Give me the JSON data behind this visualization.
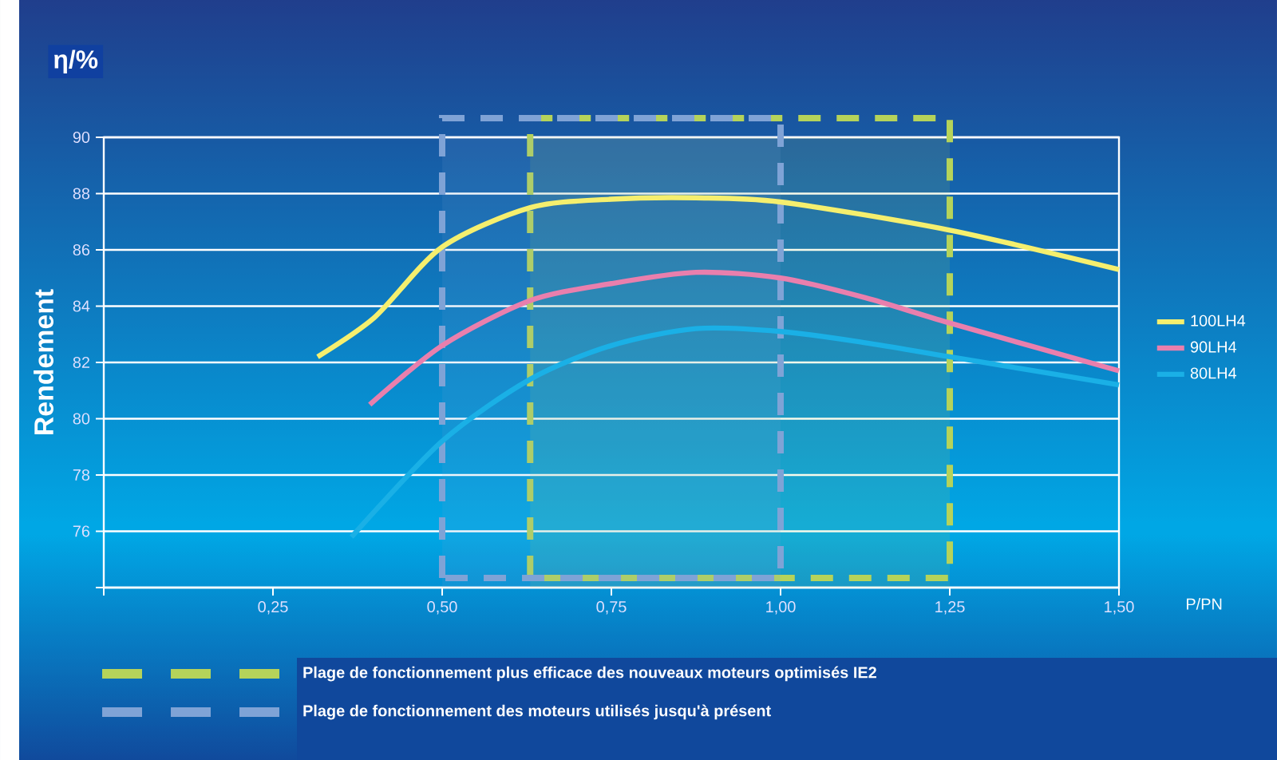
{
  "chart_data": {
    "type": "line",
    "xlabel": "P/PN",
    "ylabel": "Rendement",
    "annotations": [
      "η/%"
    ],
    "xlim": [
      0,
      1.5
    ],
    "ylim": [
      74,
      90
    ],
    "xticks": [
      {
        "value": 0,
        "label": null
      },
      {
        "value": 0.25,
        "label": "0,25"
      },
      {
        "value": 0.5,
        "label": "0,50"
      },
      {
        "value": 0.75,
        "label": "0,75"
      },
      {
        "value": 1.0,
        "label": "1,00"
      },
      {
        "value": 1.25,
        "label": "1,25"
      },
      {
        "value": 1.5,
        "label": "1,50"
      }
    ],
    "yticks": [
      {
        "value": 74,
        "label": null
      },
      76,
      78,
      80,
      82,
      84,
      86,
      88,
      90
    ],
    "grid": "y",
    "legend": "right",
    "marker": "none",
    "line_style": "solid",
    "series": [
      {
        "name": "100LH4",
        "color": "#f5ef6e",
        "x": [
          0.316,
          0.4,
          0.5,
          0.63,
          0.75,
          0.875,
          1.0,
          1.25,
          1.5
        ],
        "values": [
          82.2,
          83.6,
          86.1,
          87.5,
          87.8,
          87.85,
          87.7,
          86.7,
          85.3
        ]
      },
      {
        "name": "90LH4",
        "color": "#e97fad",
        "x": [
          0.393,
          0.5,
          0.63,
          0.75,
          0.875,
          1.0,
          1.125,
          1.25,
          1.5
        ],
        "values": [
          80.5,
          82.6,
          84.2,
          84.8,
          85.2,
          85.0,
          84.3,
          83.4,
          81.7
        ]
      },
      {
        "name": "80LH4",
        "color": "#1ab0e6",
        "x": [
          0.366,
          0.5,
          0.63,
          0.75,
          0.875,
          1.0,
          1.125,
          1.25,
          1.5
        ],
        "values": [
          75.8,
          79.2,
          81.4,
          82.6,
          83.2,
          83.1,
          82.7,
          82.2,
          81.2
        ]
      }
    ],
    "bands": [
      {
        "axis": "x",
        "from": 0.63,
        "to": 1.25,
        "label": "Plage de fonctionnement plus efficace des nouveaux moteurs optimisés IE2",
        "color": "#b5d35a"
      },
      {
        "axis": "x",
        "from": 0.5,
        "to": 1.0,
        "label": "Plage de fonctionnement des moteurs utilisés jusqu'à présent",
        "color": "#7fa3d6"
      }
    ]
  }
}
